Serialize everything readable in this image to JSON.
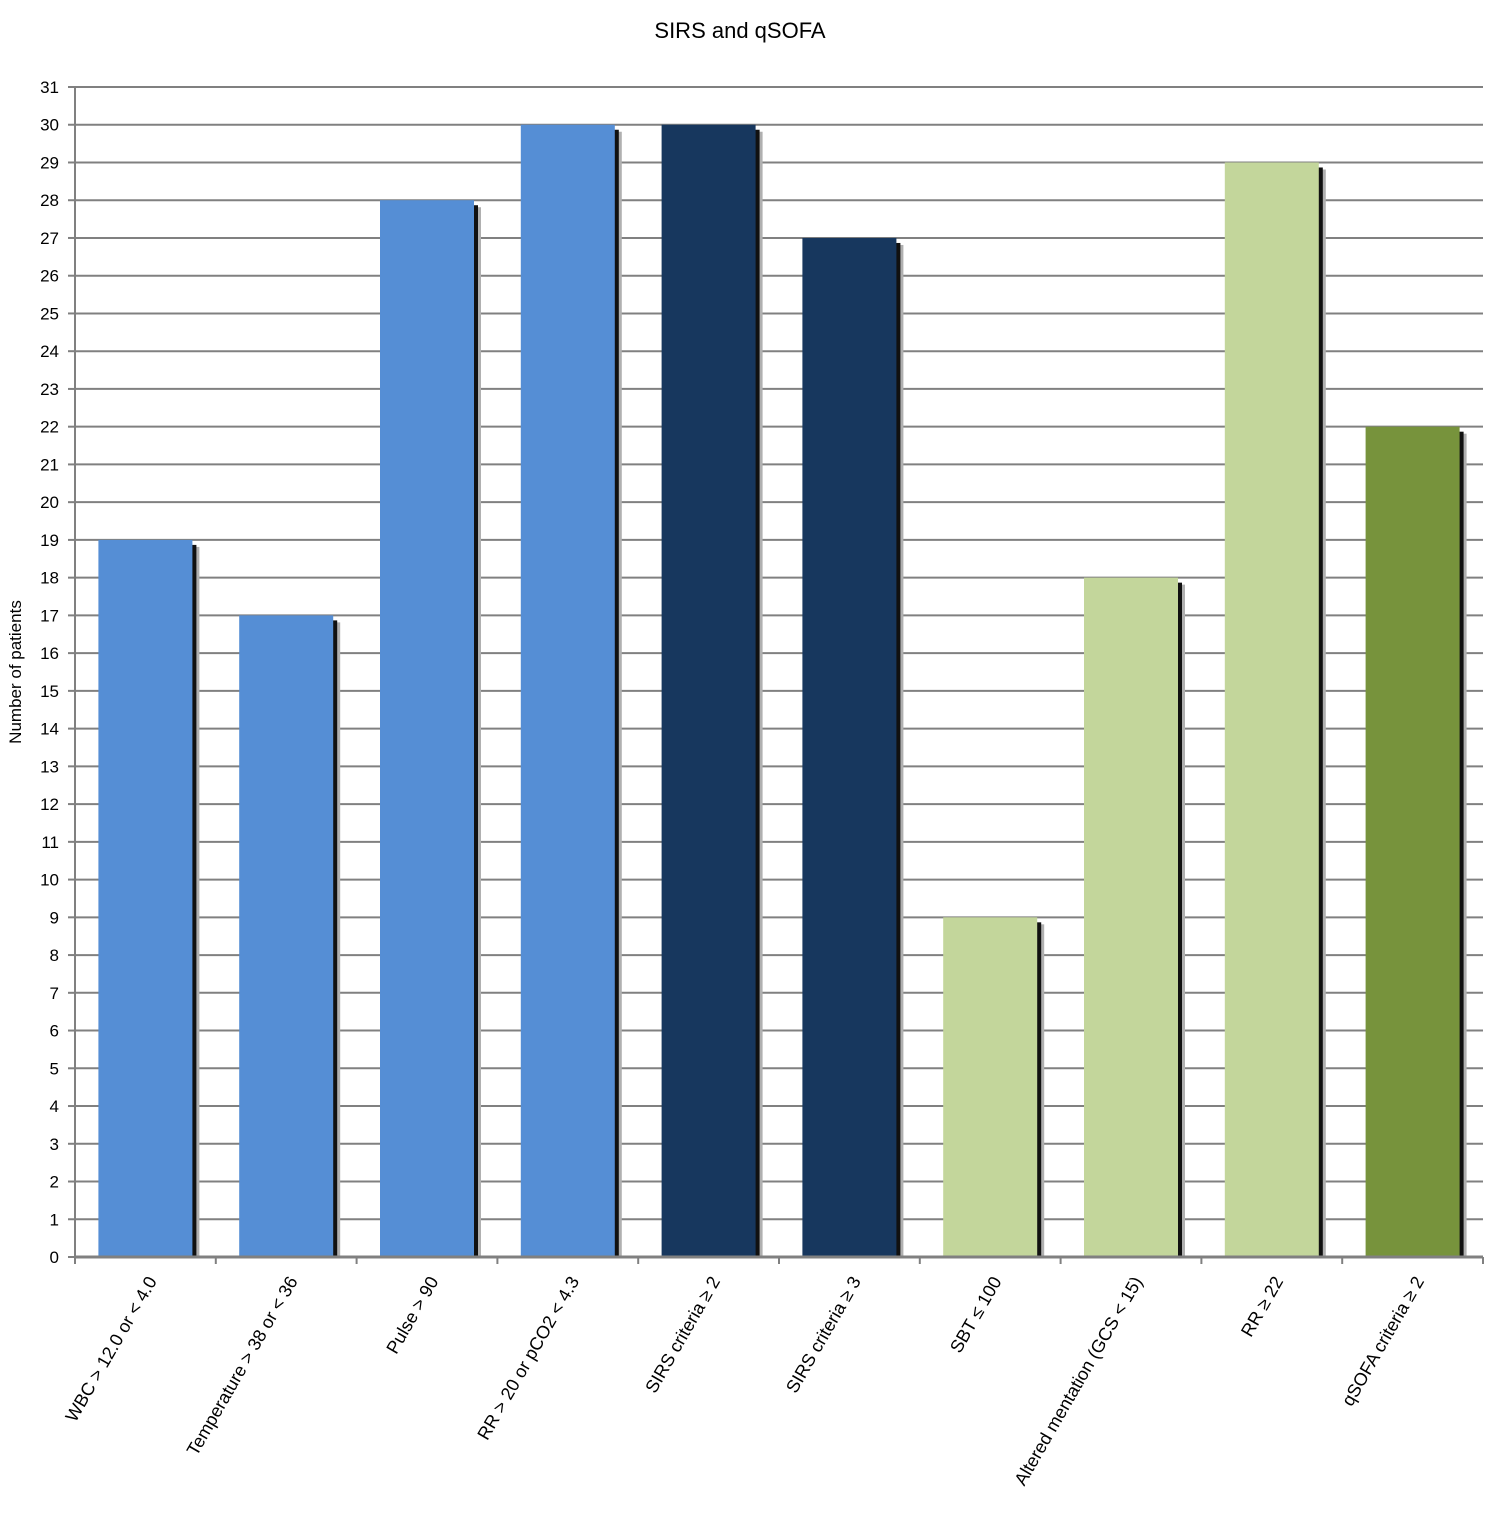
{
  "chart_data": {
    "type": "bar",
    "title": "SIRS and qSOFA",
    "xlabel": "",
    "ylabel": "Number of patients",
    "ylim": [
      0,
      31
    ],
    "ytick_step": 1,
    "grid": true,
    "legend": "none",
    "categories": [
      "WBC > 12.0 or < 4.0",
      "Temperature > 38 or < 36",
      "Pulse > 90",
      "RR > 20 or pCO2 < 4.3",
      "SIRS criteria ≥ 2",
      "SIRS criteria ≥ 3",
      "SBT ≤ 100",
      "Altered mentation (GCS < 15)",
      "RR ≥ 22",
      "qSOFA criteria ≥ 2"
    ],
    "values": [
      19,
      17,
      28,
      30,
      30,
      27,
      9,
      18,
      29,
      22
    ],
    "bar_colors": [
      "#558ed5",
      "#558ed5",
      "#558ed5",
      "#558ed5",
      "#17375e",
      "#17375e",
      "#c3d69b",
      "#c3d69b",
      "#c3d69b",
      "#77933c"
    ],
    "grid_color": "#808080"
  }
}
